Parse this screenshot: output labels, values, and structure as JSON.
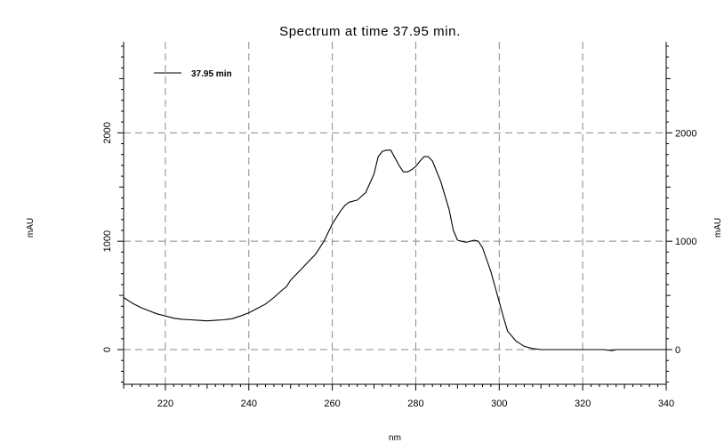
{
  "chart_data": {
    "type": "line",
    "title": "Spectrum at time 37.95 min.",
    "xlabel": "nm",
    "ylabel_left": "mAU",
    "ylabel_right": "mAU",
    "xlim": [
      210,
      340
    ],
    "ylim": [
      -320,
      2840
    ],
    "x_ticks": [
      220,
      240,
      260,
      280,
      300,
      320,
      340
    ],
    "y_ticks": [
      0,
      1000,
      2000
    ],
    "grid": true,
    "legend_position": "top-left",
    "series": [
      {
        "name": "37.95 min",
        "color": "#000000",
        "x": [
          210,
          212,
          214,
          216,
          218,
          220,
          222,
          224,
          226,
          228,
          230,
          232,
          234,
          236,
          238,
          240,
          242,
          244,
          246,
          248,
          249,
          250,
          252,
          254,
          256,
          258,
          260,
          262,
          263,
          264,
          266,
          268,
          270,
          271,
          272,
          273,
          274,
          276,
          277,
          278,
          279,
          280,
          281,
          282,
          283,
          284,
          286,
          288,
          289,
          290,
          292,
          294,
          295,
          296,
          298,
          300,
          301,
          302,
          304,
          306,
          308,
          310,
          315,
          320,
          325,
          327,
          328,
          330,
          335,
          340
        ],
        "y": [
          480,
          430,
          390,
          360,
          330,
          310,
          290,
          280,
          275,
          270,
          265,
          270,
          275,
          285,
          310,
          340,
          380,
          420,
          480,
          550,
          580,
          640,
          720,
          800,
          880,
          1000,
          1160,
          1280,
          1330,
          1360,
          1380,
          1450,
          1620,
          1780,
          1830,
          1840,
          1840,
          1700,
          1640,
          1640,
          1660,
          1690,
          1740,
          1780,
          1780,
          1740,
          1550,
          1290,
          1100,
          1010,
          990,
          1010,
          1000,
          940,
          720,
          440,
          300,
          170,
          80,
          30,
          10,
          0,
          0,
          0,
          0,
          -10,
          0,
          0,
          0,
          0
        ]
      }
    ]
  }
}
